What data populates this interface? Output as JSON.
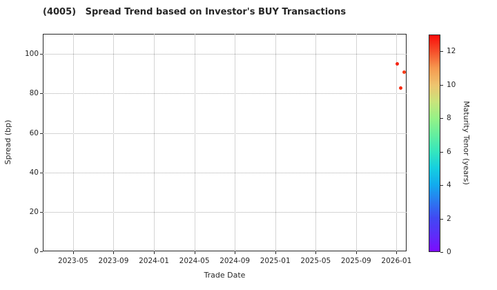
{
  "title": "(4005)   Spread Trend based on Investor's BUY Transactions",
  "axes": {
    "xlabel": "Trade Date",
    "ylabel": "Spread (bp)",
    "colorbar_label": "Maturity Tenor (years)"
  },
  "chart_data": {
    "type": "scatter",
    "title": "(4005)   Spread Trend based on Investor's BUY Transactions",
    "xlabel": "Trade Date",
    "ylabel": "Spread (bp)",
    "xlim": [
      "2023-02-01",
      "2026-02-01"
    ],
    "ylim": [
      0,
      110.25
    ],
    "x_ticks": [
      "2023-05",
      "2023-09",
      "2024-01",
      "2024-05",
      "2024-09",
      "2025-01",
      "2025-05",
      "2025-09",
      "2026-01"
    ],
    "y_ticks": [
      0,
      20,
      40,
      60,
      80,
      100
    ],
    "grid": true,
    "grid_style": "dotted",
    "legend_position": "none",
    "points": [
      {
        "date": "2026-01-03",
        "spread": 95.0,
        "maturity": 13.0,
        "color": "#f52313"
      },
      {
        "date": "2026-01-13",
        "spread": 82.7,
        "maturity": 12.9,
        "color": "#f52a12"
      },
      {
        "date": "2026-01-24",
        "spread": 91.0,
        "maturity": 12.7,
        "color": "#f63a16"
      }
    ],
    "colorbar": {
      "label": "Maturity Tenor (years)",
      "range": [
        0,
        13
      ],
      "ticks": [
        0,
        2,
        4,
        6,
        8,
        10,
        12
      ],
      "colormap": "rainbow",
      "gradient_stops": [
        {
          "value": 0,
          "color": "#7c0cfe"
        },
        {
          "value": 1,
          "color": "#5c2ef9"
        },
        {
          "value": 2,
          "color": "#4148f3"
        },
        {
          "value": 3,
          "color": "#2a79f0"
        },
        {
          "value": 4,
          "color": "#12abee"
        },
        {
          "value": 5,
          "color": "#15cfe0"
        },
        {
          "value": 6,
          "color": "#35e6bd"
        },
        {
          "value": 7,
          "color": "#64ee9f"
        },
        {
          "value": 8,
          "color": "#95f287"
        },
        {
          "value": 9,
          "color": "#c9e47b"
        },
        {
          "value": 10,
          "color": "#eec46f"
        },
        {
          "value": 11,
          "color": "#f69a50"
        },
        {
          "value": 12,
          "color": "#f6512b"
        },
        {
          "value": 13,
          "color": "#fb0d0a"
        }
      ]
    }
  }
}
